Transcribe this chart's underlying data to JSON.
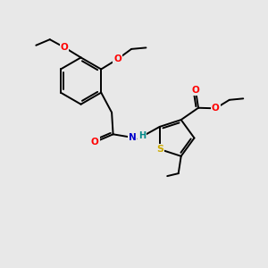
{
  "background_color": "#e8e8e8",
  "figsize": [
    3.0,
    3.0
  ],
  "dpi": 100,
  "bond_color": "#000000",
  "bond_width": 1.4,
  "font_size": 7.5,
  "O_color": "#ff0000",
  "N_color": "#0000cc",
  "S_color": "#ccaa00",
  "H_color": "#008888",
  "xlim": [
    0,
    10
  ],
  "ylim": [
    0,
    10
  ]
}
